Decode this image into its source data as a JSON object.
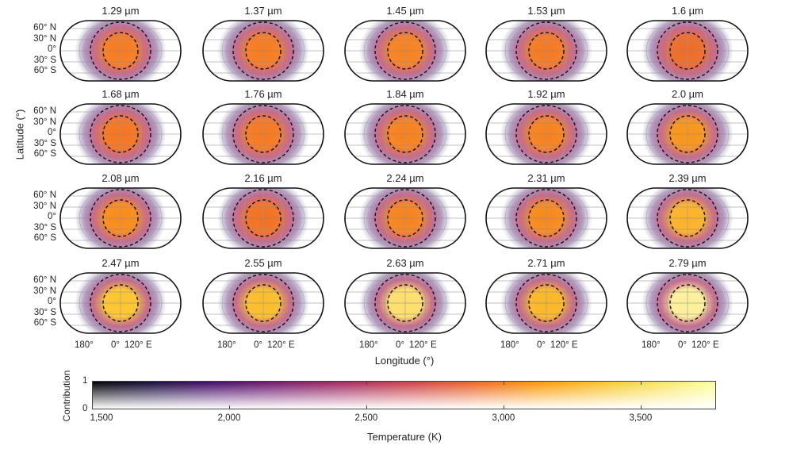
{
  "chart_data": {
    "type": "heatmap",
    "panels": [
      {
        "label": "1.29 µm",
        "peak_color": "#f77a1e"
      },
      {
        "label": "1.37 µm",
        "peak_color": "#f77a1e"
      },
      {
        "label": "1.45 µm",
        "peak_color": "#f7801e"
      },
      {
        "label": "1.53 µm",
        "peak_color": "#f5781f"
      },
      {
        "label": "1.6 µm",
        "peak_color": "#ee6a25"
      },
      {
        "label": "1.68 µm",
        "peak_color": "#f4741f"
      },
      {
        "label": "1.76 µm",
        "peak_color": "#f5781f"
      },
      {
        "label": "1.84 µm",
        "peak_color": "#f6801c"
      },
      {
        "label": "1.92 µm",
        "peak_color": "#f6801c"
      },
      {
        "label": "2.0 µm",
        "peak_color": "#f8941a"
      },
      {
        "label": "2.08 µm",
        "peak_color": "#f98a18"
      },
      {
        "label": "2.16 µm",
        "peak_color": "#f27020"
      },
      {
        "label": "2.24 µm",
        "peak_color": "#f6821c"
      },
      {
        "label": "2.31 µm",
        "peak_color": "#f7881a"
      },
      {
        "label": "2.39 µm",
        "peak_color": "#fbb226"
      },
      {
        "label": "2.47 µm",
        "peak_color": "#fcc42e"
      },
      {
        "label": "2.55 µm",
        "peak_color": "#fbbc2a"
      },
      {
        "label": "2.63 µm",
        "peak_color": "#fcde6a"
      },
      {
        "label": "2.71 µm",
        "peak_color": "#fbb626"
      },
      {
        "label": "2.79 µm",
        "peak_color": "#fcef9a"
      }
    ],
    "latitude_ticks": [
      "60° N",
      "30° N",
      "0°",
      "30° S",
      "60° S"
    ],
    "longitude_ticks": [
      "180°",
      "0°",
      "120° E"
    ],
    "ylabel": "Latitude (°)",
    "xlabel": "Longitude (°)",
    "colorbar": {
      "xlabel": "Temperature (K)",
      "ylabel": "Contribution",
      "x_ticks": [
        "1,500",
        "2,000",
        "2,500",
        "3,000",
        "3,500"
      ],
      "x_range": [
        1500,
        3775
      ],
      "y_ticks": [
        "0",
        "1"
      ],
      "colormap": "inferno"
    }
  }
}
